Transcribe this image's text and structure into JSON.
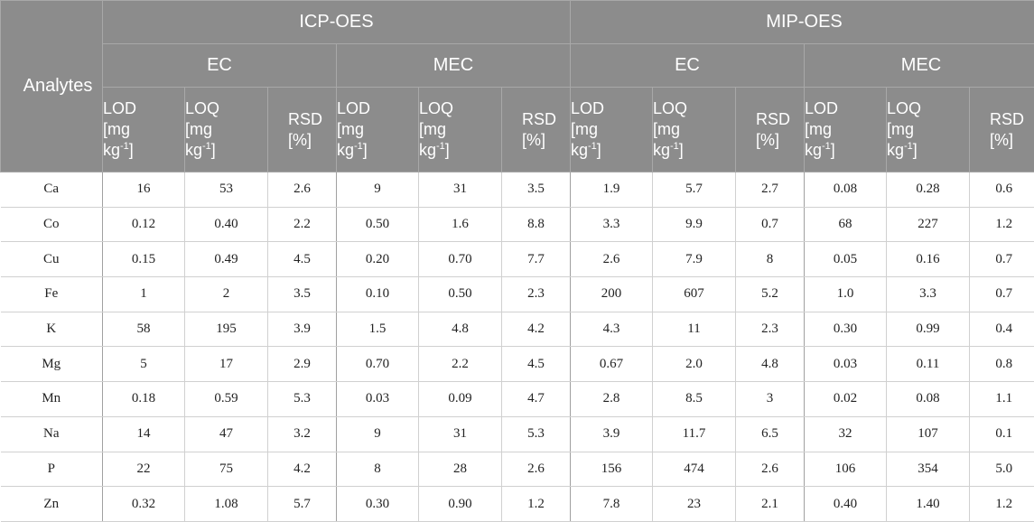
{
  "header": {
    "analytes": "Analytes",
    "instruments": [
      "ICP-OES",
      "MIP-OES"
    ],
    "methods": [
      "EC",
      "MEC",
      "EC",
      "MEC"
    ],
    "lod_line1": "LOD",
    "loq_line1": "LOQ",
    "unit_open": "[mg",
    "unit_kg": "kg",
    "unit_exp": "-1",
    "unit_close": "]",
    "rsd_line1": "RSD",
    "rsd_line2": "[%]"
  },
  "rows": [
    {
      "analyte": "Ca",
      "values": [
        "16",
        "53",
        "2.6",
        "9",
        "31",
        "3.5",
        "1.9",
        "5.7",
        "2.7",
        "0.08",
        "0.28",
        "0.6"
      ]
    },
    {
      "analyte": "Co",
      "values": [
        "0.12",
        "0.40",
        "2.2",
        "0.50",
        "1.6",
        "8.8",
        "3.3",
        "9.9",
        "0.7",
        "68",
        "227",
        "1.2"
      ]
    },
    {
      "analyte": "Cu",
      "values": [
        "0.15",
        "0.49",
        "4.5",
        "0.20",
        "0.70",
        "7.7",
        "2.6",
        "7.9",
        "8",
        "0.05",
        "0.16",
        "0.7"
      ]
    },
    {
      "analyte": "Fe",
      "values": [
        "1",
        "2",
        "3.5",
        "0.10",
        "0.50",
        "2.3",
        "200",
        "607",
        "5.2",
        "1.0",
        "3.3",
        "0.7"
      ]
    },
    {
      "analyte": "K",
      "values": [
        "58",
        "195",
        "3.9",
        "1.5",
        "4.8",
        "4.2",
        "4.3",
        "11",
        "2.3",
        "0.30",
        "0.99",
        "0.4"
      ]
    },
    {
      "analyte": "Mg",
      "values": [
        "5",
        "17",
        "2.9",
        "0.70",
        "2.2",
        "4.5",
        "0.67",
        "2.0",
        "4.8",
        "0.03",
        "0.11",
        "0.8"
      ]
    },
    {
      "analyte": "Mn",
      "values": [
        "0.18",
        "0.59",
        "5.3",
        "0.03",
        "0.09",
        "4.7",
        "2.8",
        "8.5",
        "3",
        "0.02",
        "0.08",
        "1.1"
      ]
    },
    {
      "analyte": "Na",
      "values": [
        "14",
        "47",
        "3.2",
        "9",
        "31",
        "5.3",
        "3.9",
        "11.7",
        "6.5",
        "32",
        "107",
        "0.1"
      ]
    },
    {
      "analyte": "P",
      "values": [
        "22",
        "75",
        "4.2",
        "8",
        "28",
        "2.6",
        "156",
        "474",
        "2.6",
        "106",
        "354",
        "5.0"
      ]
    },
    {
      "analyte": "Zn",
      "values": [
        "0.32",
        "1.08",
        "5.7",
        "0.30",
        "0.90",
        "1.2",
        "7.8",
        "23",
        "2.1",
        "0.40",
        "1.40",
        "1.2"
      ]
    }
  ]
}
